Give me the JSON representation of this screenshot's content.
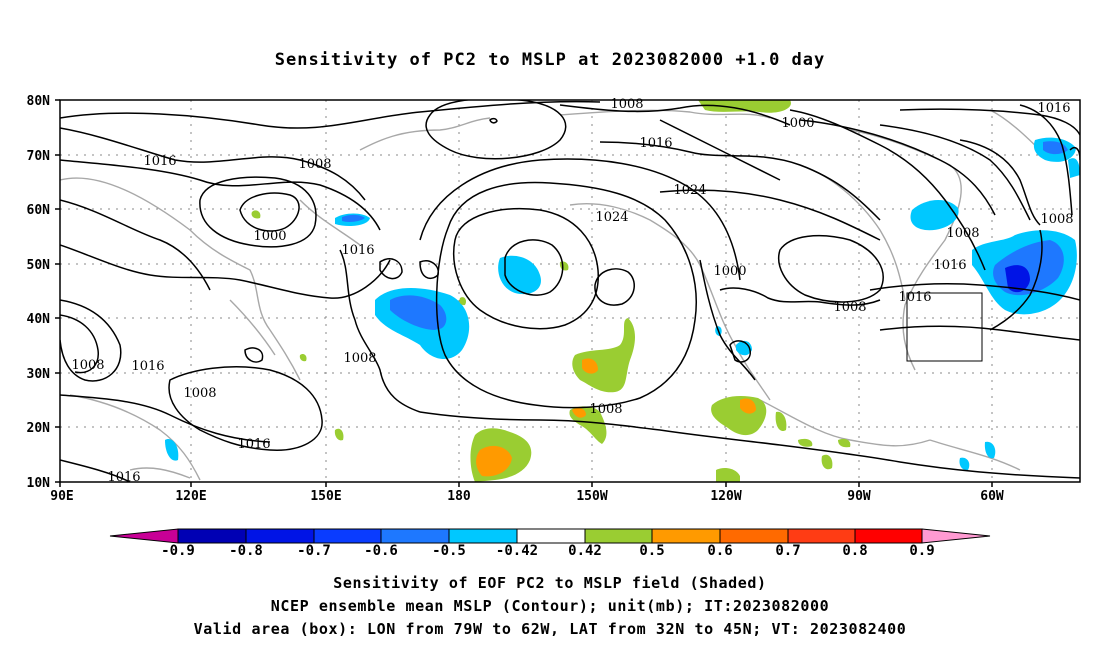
{
  "title": "Sensitivity of PC2 to MSLP at 2023082000 +1.0 day",
  "lat_labels": [
    "80N",
    "70N",
    "60N",
    "50N",
    "40N",
    "30N",
    "20N",
    "10N"
  ],
  "lon_labels": [
    "90E",
    "120E",
    "150E",
    "180",
    "150W",
    "120W",
    "90W",
    "60W"
  ],
  "contour_labels": [
    "1008",
    "1000",
    "1016",
    "1016",
    "1008",
    "1000",
    "1016",
    "1024",
    "1024",
    "1008",
    "1016",
    "1008",
    "1000",
    "1016",
    "1016",
    "1008",
    "1008",
    "1008",
    "1016",
    "1008",
    "1008",
    "1016",
    "1016",
    "1008"
  ],
  "colorbar": {
    "labels": [
      "-0.9",
      "-0.8",
      "-0.7",
      "-0.6",
      "-0.5",
      "-0.42",
      "0.42",
      "0.5",
      "0.6",
      "0.7",
      "0.8",
      "0.9"
    ],
    "colors": [
      "#c80096",
      "#0000b4",
      "#0014e6",
      "#0a3cff",
      "#1e78ff",
      "#00c8ff",
      "#ffffff",
      "#9acd32",
      "#ff9a00",
      "#ff6a00",
      "#ff3c14",
      "#ff0000",
      "#ff9ad2"
    ]
  },
  "captions": [
    "Sensitivity of EOF PC2 to MSLP field (Shaded)",
    "NCEP ensemble mean MSLP (Contour); unit(mb); IT:2023082000",
    "Valid area (box): LON from 79W to 62W, LAT from 32N to 45N; VT: 2023082400"
  ],
  "valid_box": {
    "lon_min": -79,
    "lon_max": -62,
    "lat_min": 32,
    "lat_max": 45
  }
}
